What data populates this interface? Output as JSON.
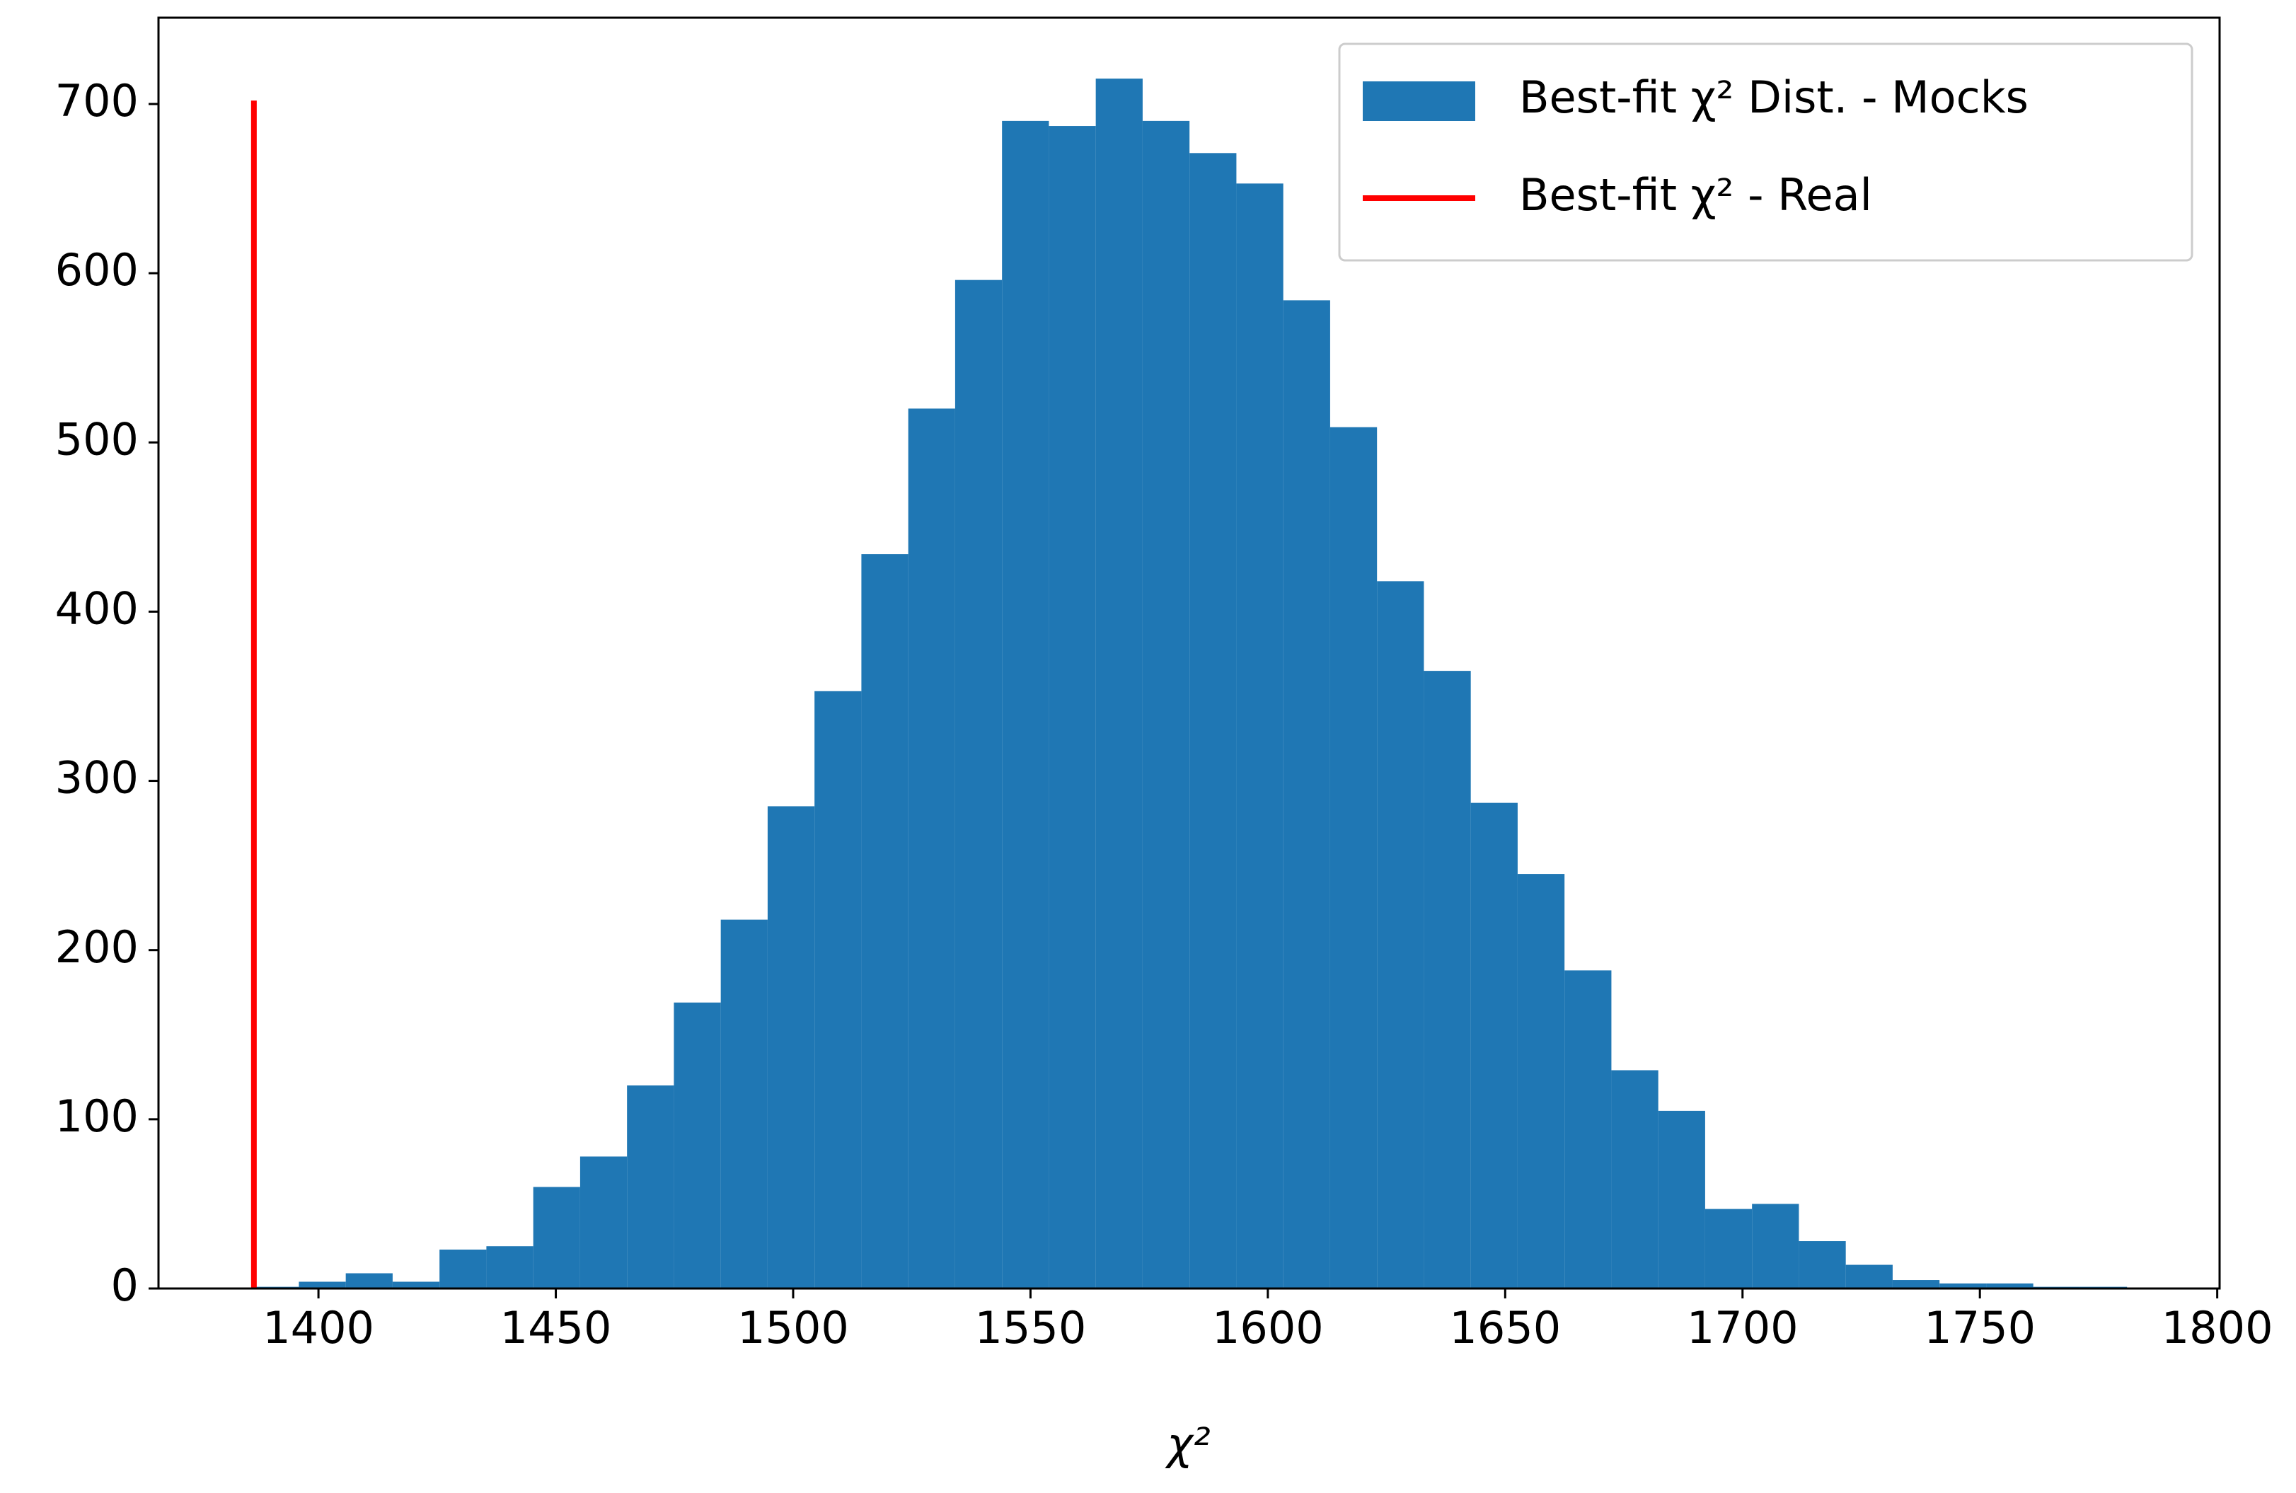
{
  "chart_data": {
    "type": "histogram",
    "xlabel": "χ²",
    "xlim": [
      1366.3,
      1800.5
    ],
    "ylim": [
      0,
      751
    ],
    "xticks": [
      1400,
      1450,
      1500,
      1550,
      1600,
      1650,
      1700,
      1750,
      1800
    ],
    "yticks": [
      0,
      100,
      200,
      300,
      400,
      500,
      600,
      700
    ],
    "legend": "upper right",
    "series": [
      {
        "name": "Best-fit χ² Dist. - Mocks",
        "color": "#1f77b4",
        "bins": [
          1386,
          1395.875,
          1405.75,
          1415.625,
          1425.5,
          1435.375,
          1445.25,
          1455.125,
          1465,
          1474.875,
          1484.75,
          1494.625,
          1504.5,
          1514.375,
          1524.25,
          1534.125,
          1544,
          1553.875,
          1563.75,
          1573.625,
          1583.5,
          1593.375,
          1603.25,
          1613.125,
          1623,
          1632.875,
          1642.75,
          1652.625,
          1662.5,
          1672.375,
          1682.25,
          1692.125,
          1702,
          1711.875,
          1721.75,
          1731.625,
          1741.5,
          1751.375,
          1761.25,
          1771.125,
          1781
        ],
        "values": [
          1,
          4,
          9,
          4,
          23,
          25,
          60,
          78,
          120,
          169,
          218,
          285,
          353,
          434,
          520,
          596,
          690,
          687,
          715,
          690,
          671,
          653,
          584,
          509,
          418,
          365,
          287,
          245,
          188,
          129,
          105,
          47,
          50,
          28,
          14,
          5,
          3,
          3,
          1,
          1
        ]
      }
    ],
    "vline": {
      "name": "Best-fit χ² - Real",
      "color": "#ff0000",
      "x": 1386.4,
      "ymin": 0,
      "ymax": 702
    }
  }
}
